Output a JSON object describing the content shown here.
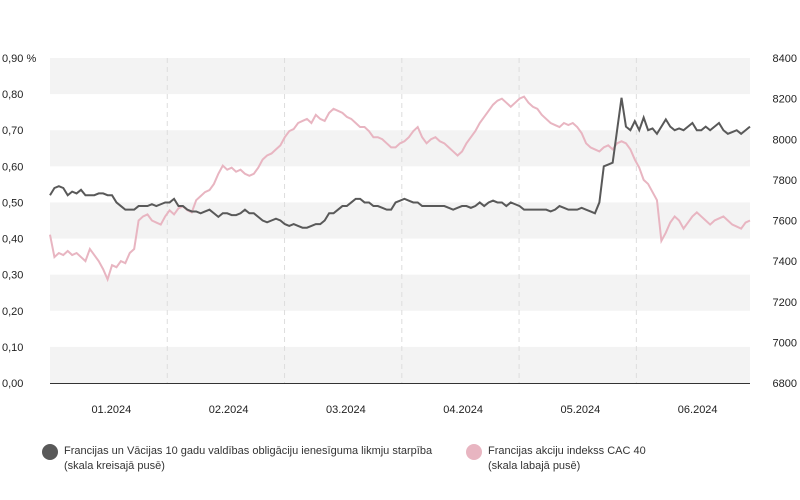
{
  "chart_data": {
    "type": "line",
    "left_axis": {
      "unit": "%",
      "ticks": [
        "0,00",
        "0,10",
        "0,20",
        "0,30",
        "0,40",
        "0,50",
        "0,60",
        "0,70",
        "0,80",
        "0,90 %"
      ],
      "ylim": [
        0,
        0.9
      ]
    },
    "right_axis": {
      "ticks": [
        "6800",
        "7000",
        "7200",
        "7400",
        "7600",
        "7800",
        "8000",
        "8200",
        "8400"
      ],
      "ylim": [
        6800,
        8400
      ]
    },
    "x_labels": [
      "01.2024",
      "02.2024",
      "03.2024",
      "04.2024",
      "05.2024",
      "06.2024"
    ],
    "grid": "alternating horizontal bands, dashed vertical month separators",
    "series": [
      {
        "name": "Francijas un Vācijas 10 gadu valdības obligāciju ienesīguma likmju starpība",
        "axis_note": "(skala kreisajā pusē)",
        "axis": "left",
        "color": "#595959",
        "x": [
          0,
          1,
          2,
          3,
          4,
          5,
          6,
          7,
          8,
          9,
          10,
          11,
          12,
          13,
          14,
          15,
          16,
          17,
          18,
          19,
          20,
          21,
          22,
          23,
          24,
          25,
          26,
          27,
          28,
          29,
          30,
          31,
          32,
          33,
          34,
          35,
          36,
          37,
          38,
          39,
          40,
          41,
          42,
          43,
          44,
          45,
          46,
          47,
          48,
          49,
          50,
          51,
          52,
          53,
          54,
          55,
          56,
          57,
          58,
          59,
          60,
          61,
          62,
          63,
          64,
          65,
          66,
          67,
          68,
          69,
          70,
          71,
          72,
          73,
          74,
          75,
          76,
          77,
          78,
          79,
          80,
          81,
          82,
          83,
          84,
          85,
          86,
          87,
          88,
          89,
          90,
          91,
          92,
          93,
          94,
          95,
          96,
          97,
          98,
          99,
          100,
          101,
          102,
          103,
          104,
          105,
          106,
          107,
          108,
          109,
          110,
          111,
          112,
          113,
          114,
          115,
          116,
          117,
          118,
          119,
          120,
          121,
          122,
          123,
          124,
          125,
          126,
          127,
          128,
          129,
          130,
          131,
          132,
          133,
          134,
          135,
          136,
          137,
          138,
          139,
          140,
          141,
          142,
          143,
          144,
          145,
          146,
          147,
          148,
          149,
          150,
          151,
          152,
          153,
          154,
          155,
          156,
          157,
          158
        ],
        "values": [
          0.52,
          0.54,
          0.545,
          0.54,
          0.52,
          0.53,
          0.525,
          0.535,
          0.52,
          0.52,
          0.52,
          0.525,
          0.525,
          0.52,
          0.52,
          0.5,
          0.49,
          0.48,
          0.48,
          0.48,
          0.49,
          0.49,
          0.49,
          0.495,
          0.49,
          0.495,
          0.5,
          0.5,
          0.51,
          0.49,
          0.49,
          0.48,
          0.475,
          0.475,
          0.47,
          0.475,
          0.48,
          0.47,
          0.46,
          0.47,
          0.47,
          0.465,
          0.465,
          0.47,
          0.48,
          0.47,
          0.47,
          0.46,
          0.45,
          0.445,
          0.45,
          0.455,
          0.45,
          0.44,
          0.435,
          0.44,
          0.435,
          0.43,
          0.43,
          0.435,
          0.44,
          0.44,
          0.45,
          0.47,
          0.47,
          0.48,
          0.49,
          0.49,
          0.5,
          0.51,
          0.51,
          0.5,
          0.5,
          0.49,
          0.49,
          0.485,
          0.48,
          0.48,
          0.5,
          0.505,
          0.51,
          0.505,
          0.5,
          0.5,
          0.49,
          0.49,
          0.49,
          0.49,
          0.49,
          0.49,
          0.485,
          0.48,
          0.485,
          0.49,
          0.49,
          0.485,
          0.49,
          0.5,
          0.49,
          0.5,
          0.505,
          0.5,
          0.5,
          0.49,
          0.5,
          0.495,
          0.49,
          0.48,
          0.48,
          0.48,
          0.48,
          0.48,
          0.48,
          0.475,
          0.48,
          0.49,
          0.485,
          0.48,
          0.48,
          0.48,
          0.485,
          0.48,
          0.475,
          0.47,
          0.5,
          0.6,
          0.605,
          0.61,
          0.7,
          0.79,
          0.71,
          0.7,
          0.725,
          0.7,
          0.735,
          0.7,
          0.705,
          0.69,
          0.71,
          0.73,
          0.71,
          0.7,
          0.705,
          0.7,
          0.71,
          0.72,
          0.7,
          0.7,
          0.71,
          0.7,
          0.71,
          0.72,
          0.7,
          0.69,
          0.695,
          0.7,
          0.69,
          0.7,
          0.71
        ],
        "values_note": "approximate daily values, Jan–Jun 2024"
      },
      {
        "name": "Francijas akciju indekss CAC 40",
        "axis_note": "(skala labajā pusē)",
        "axis": "right",
        "color": "#e8b5c1",
        "values": [
          7530,
          7420,
          7440,
          7430,
          7450,
          7430,
          7440,
          7420,
          7400,
          7460,
          7430,
          7400,
          7360,
          7310,
          7380,
          7370,
          7400,
          7390,
          7440,
          7460,
          7600,
          7620,
          7630,
          7600,
          7590,
          7580,
          7620,
          7650,
          7630,
          7660,
          7670,
          7650,
          7640,
          7700,
          7720,
          7740,
          7750,
          7780,
          7830,
          7870,
          7850,
          7860,
          7840,
          7850,
          7830,
          7820,
          7830,
          7860,
          7900,
          7920,
          7930,
          7950,
          7970,
          8010,
          8040,
          8050,
          8080,
          8090,
          8100,
          8080,
          8120,
          8100,
          8090,
          8130,
          8150,
          8140,
          8130,
          8110,
          8100,
          8080,
          8060,
          8060,
          8040,
          8010,
          8010,
          8000,
          7980,
          7960,
          7960,
          7980,
          7990,
          8010,
          8040,
          8060,
          8010,
          7980,
          8000,
          8010,
          7990,
          7980,
          7960,
          7940,
          7920,
          7940,
          7980,
          8010,
          8040,
          8080,
          8110,
          8140,
          8170,
          8190,
          8200,
          8180,
          8160,
          8180,
          8200,
          8210,
          8180,
          8160,
          8150,
          8120,
          8100,
          8080,
          8070,
          8060,
          8080,
          8070,
          8080,
          8060,
          8030,
          7980,
          7960,
          7950,
          7940,
          7960,
          7970,
          7950,
          7980,
          7990,
          7980,
          7950,
          7900,
          7860,
          7800,
          7780,
          7740,
          7700,
          7500,
          7540,
          7590,
          7620,
          7600,
          7560,
          7590,
          7620,
          7640,
          7620,
          7600,
          7580,
          7600,
          7610,
          7620,
          7600,
          7580,
          7570,
          7560,
          7590,
          7600
        ],
        "values_note": "approximate daily values, Jan–Jun 2024"
      }
    ]
  },
  "legend": {
    "items": [
      {
        "label": "Francijas un Vācijas 10 gadu valdības obligāciju ienesīguma likmju starpība",
        "note": "(skala kreisajā pusē)",
        "color": "#595959"
      },
      {
        "label": "Francijas akciju indekss CAC 40",
        "note": "(skala labajā pusē)",
        "color": "#e8b5c1"
      }
    ]
  }
}
